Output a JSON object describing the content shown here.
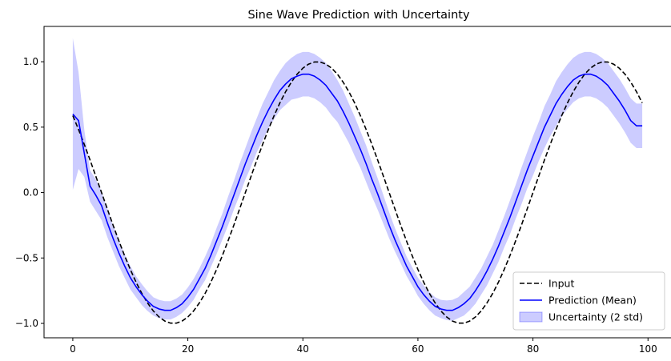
{
  "chart_data": {
    "type": "line",
    "title": "Sine Wave Prediction with Uncertainty",
    "xlim": [
      -5,
      104
    ],
    "ylim": [
      -1.11,
      1.27
    ],
    "x_ticks": [
      0,
      20,
      40,
      60,
      80,
      100
    ],
    "y_ticks": [
      -1.0,
      -0.5,
      0.0,
      0.5,
      1.0
    ],
    "x_tick_labels": [
      "0",
      "20",
      "40",
      "60",
      "80",
      "100"
    ],
    "y_tick_labels": [
      "−1.0",
      "−0.5",
      "0.0",
      "0.5",
      "1.0"
    ],
    "grid": false,
    "legend_position": "lower-right",
    "x": [
      0,
      1,
      2,
      3,
      4,
      5,
      6,
      7,
      8,
      9,
      10,
      11,
      12,
      13,
      14,
      15,
      16,
      17,
      18,
      19,
      20,
      21,
      22,
      23,
      24,
      25,
      26,
      27,
      28,
      29,
      30,
      31,
      32,
      33,
      34,
      35,
      36,
      37,
      38,
      39,
      40,
      41,
      42,
      43,
      44,
      45,
      46,
      47,
      48,
      49,
      50,
      51,
      52,
      53,
      54,
      55,
      56,
      57,
      58,
      59,
      60,
      61,
      62,
      63,
      64,
      65,
      66,
      67,
      68,
      69,
      70,
      71,
      72,
      73,
      74,
      75,
      76,
      77,
      78,
      79,
      80,
      81,
      82,
      83,
      84,
      85,
      86,
      87,
      88,
      89,
      90,
      91,
      92,
      93,
      94,
      95,
      96,
      97,
      98,
      99
    ],
    "series": [
      {
        "name": "Input",
        "kind": "line",
        "color": "#000000",
        "dash": "dashed",
        "values": [
          0.588,
          0.482,
          0.368,
          0.249,
          0.125,
          0.0,
          -0.125,
          -0.249,
          -0.368,
          -0.482,
          -0.588,
          -0.685,
          -0.771,
          -0.844,
          -0.905,
          -0.951,
          -0.982,
          -0.998,
          -0.998,
          -0.982,
          -0.951,
          -0.905,
          -0.844,
          -0.771,
          -0.685,
          -0.588,
          -0.482,
          -0.368,
          -0.249,
          -0.125,
          0.0,
          0.125,
          0.249,
          0.368,
          0.482,
          0.588,
          0.685,
          0.771,
          0.844,
          0.905,
          0.951,
          0.982,
          0.998,
          0.998,
          0.982,
          0.951,
          0.905,
          0.844,
          0.771,
          0.685,
          0.588,
          0.482,
          0.368,
          0.249,
          0.125,
          0.0,
          -0.125,
          -0.249,
          -0.368,
          -0.482,
          -0.588,
          -0.685,
          -0.771,
          -0.844,
          -0.905,
          -0.951,
          -0.982,
          -0.998,
          -0.998,
          -0.982,
          -0.951,
          -0.905,
          -0.844,
          -0.771,
          -0.685,
          -0.588,
          -0.482,
          -0.368,
          -0.249,
          -0.125,
          0.0,
          0.125,
          0.249,
          0.368,
          0.482,
          0.588,
          0.685,
          0.771,
          0.844,
          0.905,
          0.951,
          0.982,
          0.998,
          0.998,
          0.982,
          0.951,
          0.905,
          0.844,
          0.771,
          0.685
        ]
      },
      {
        "name": "Prediction (Mean)",
        "kind": "line",
        "color": "#0000ff",
        "dash": "solid",
        "values": [
          0.6,
          0.55,
          0.3,
          0.05,
          -0.02,
          -0.1,
          -0.23,
          -0.35,
          -0.46,
          -0.56,
          -0.65,
          -0.72,
          -0.78,
          -0.83,
          -0.87,
          -0.89,
          -0.9,
          -0.9,
          -0.88,
          -0.85,
          -0.8,
          -0.74,
          -0.66,
          -0.58,
          -0.48,
          -0.37,
          -0.26,
          -0.14,
          -0.02,
          0.1,
          0.22,
          0.33,
          0.44,
          0.54,
          0.63,
          0.71,
          0.78,
          0.83,
          0.87,
          0.89,
          0.905,
          0.905,
          0.89,
          0.86,
          0.82,
          0.76,
          0.7,
          0.62,
          0.53,
          0.43,
          0.33,
          0.22,
          0.1,
          -0.01,
          -0.13,
          -0.25,
          -0.36,
          -0.46,
          -0.56,
          -0.64,
          -0.72,
          -0.78,
          -0.83,
          -0.87,
          -0.89,
          -0.9,
          -0.9,
          -0.88,
          -0.85,
          -0.81,
          -0.75,
          -0.68,
          -0.6,
          -0.51,
          -0.41,
          -0.3,
          -0.19,
          -0.07,
          0.05,
          0.17,
          0.28,
          0.39,
          0.5,
          0.59,
          0.68,
          0.75,
          0.81,
          0.86,
          0.89,
          0.905,
          0.905,
          0.89,
          0.86,
          0.82,
          0.76,
          0.7,
          0.63,
          0.55,
          0.51,
          0.51
        ]
      }
    ],
    "band": {
      "name": "Uncertainty (2 std)",
      "color": "#0000ff",
      "opacity": 0.2,
      "half_width": [
        0.58,
        0.37,
        0.18,
        0.12,
        0.12,
        0.11,
        0.11,
        0.1,
        0.1,
        0.09,
        0.09,
        0.08,
        0.08,
        0.075,
        0.07,
        0.07,
        0.07,
        0.07,
        0.07,
        0.07,
        0.075,
        0.08,
        0.08,
        0.09,
        0.09,
        0.1,
        0.1,
        0.11,
        0.11,
        0.12,
        0.12,
        0.13,
        0.13,
        0.14,
        0.14,
        0.15,
        0.15,
        0.16,
        0.16,
        0.17,
        0.17,
        0.17,
        0.17,
        0.17,
        0.17,
        0.17,
        0.16,
        0.16,
        0.15,
        0.15,
        0.14,
        0.14,
        0.13,
        0.12,
        0.11,
        0.1,
        0.09,
        0.08,
        0.075,
        0.07,
        0.07,
        0.07,
        0.07,
        0.07,
        0.07,
        0.075,
        0.08,
        0.08,
        0.09,
        0.09,
        0.1,
        0.1,
        0.11,
        0.11,
        0.12,
        0.12,
        0.13,
        0.13,
        0.14,
        0.14,
        0.15,
        0.15,
        0.16,
        0.16,
        0.17,
        0.17,
        0.17,
        0.17,
        0.17,
        0.17,
        0.17,
        0.17,
        0.17,
        0.17,
        0.17,
        0.17,
        0.17,
        0.17,
        0.17,
        0.17
      ]
    }
  }
}
